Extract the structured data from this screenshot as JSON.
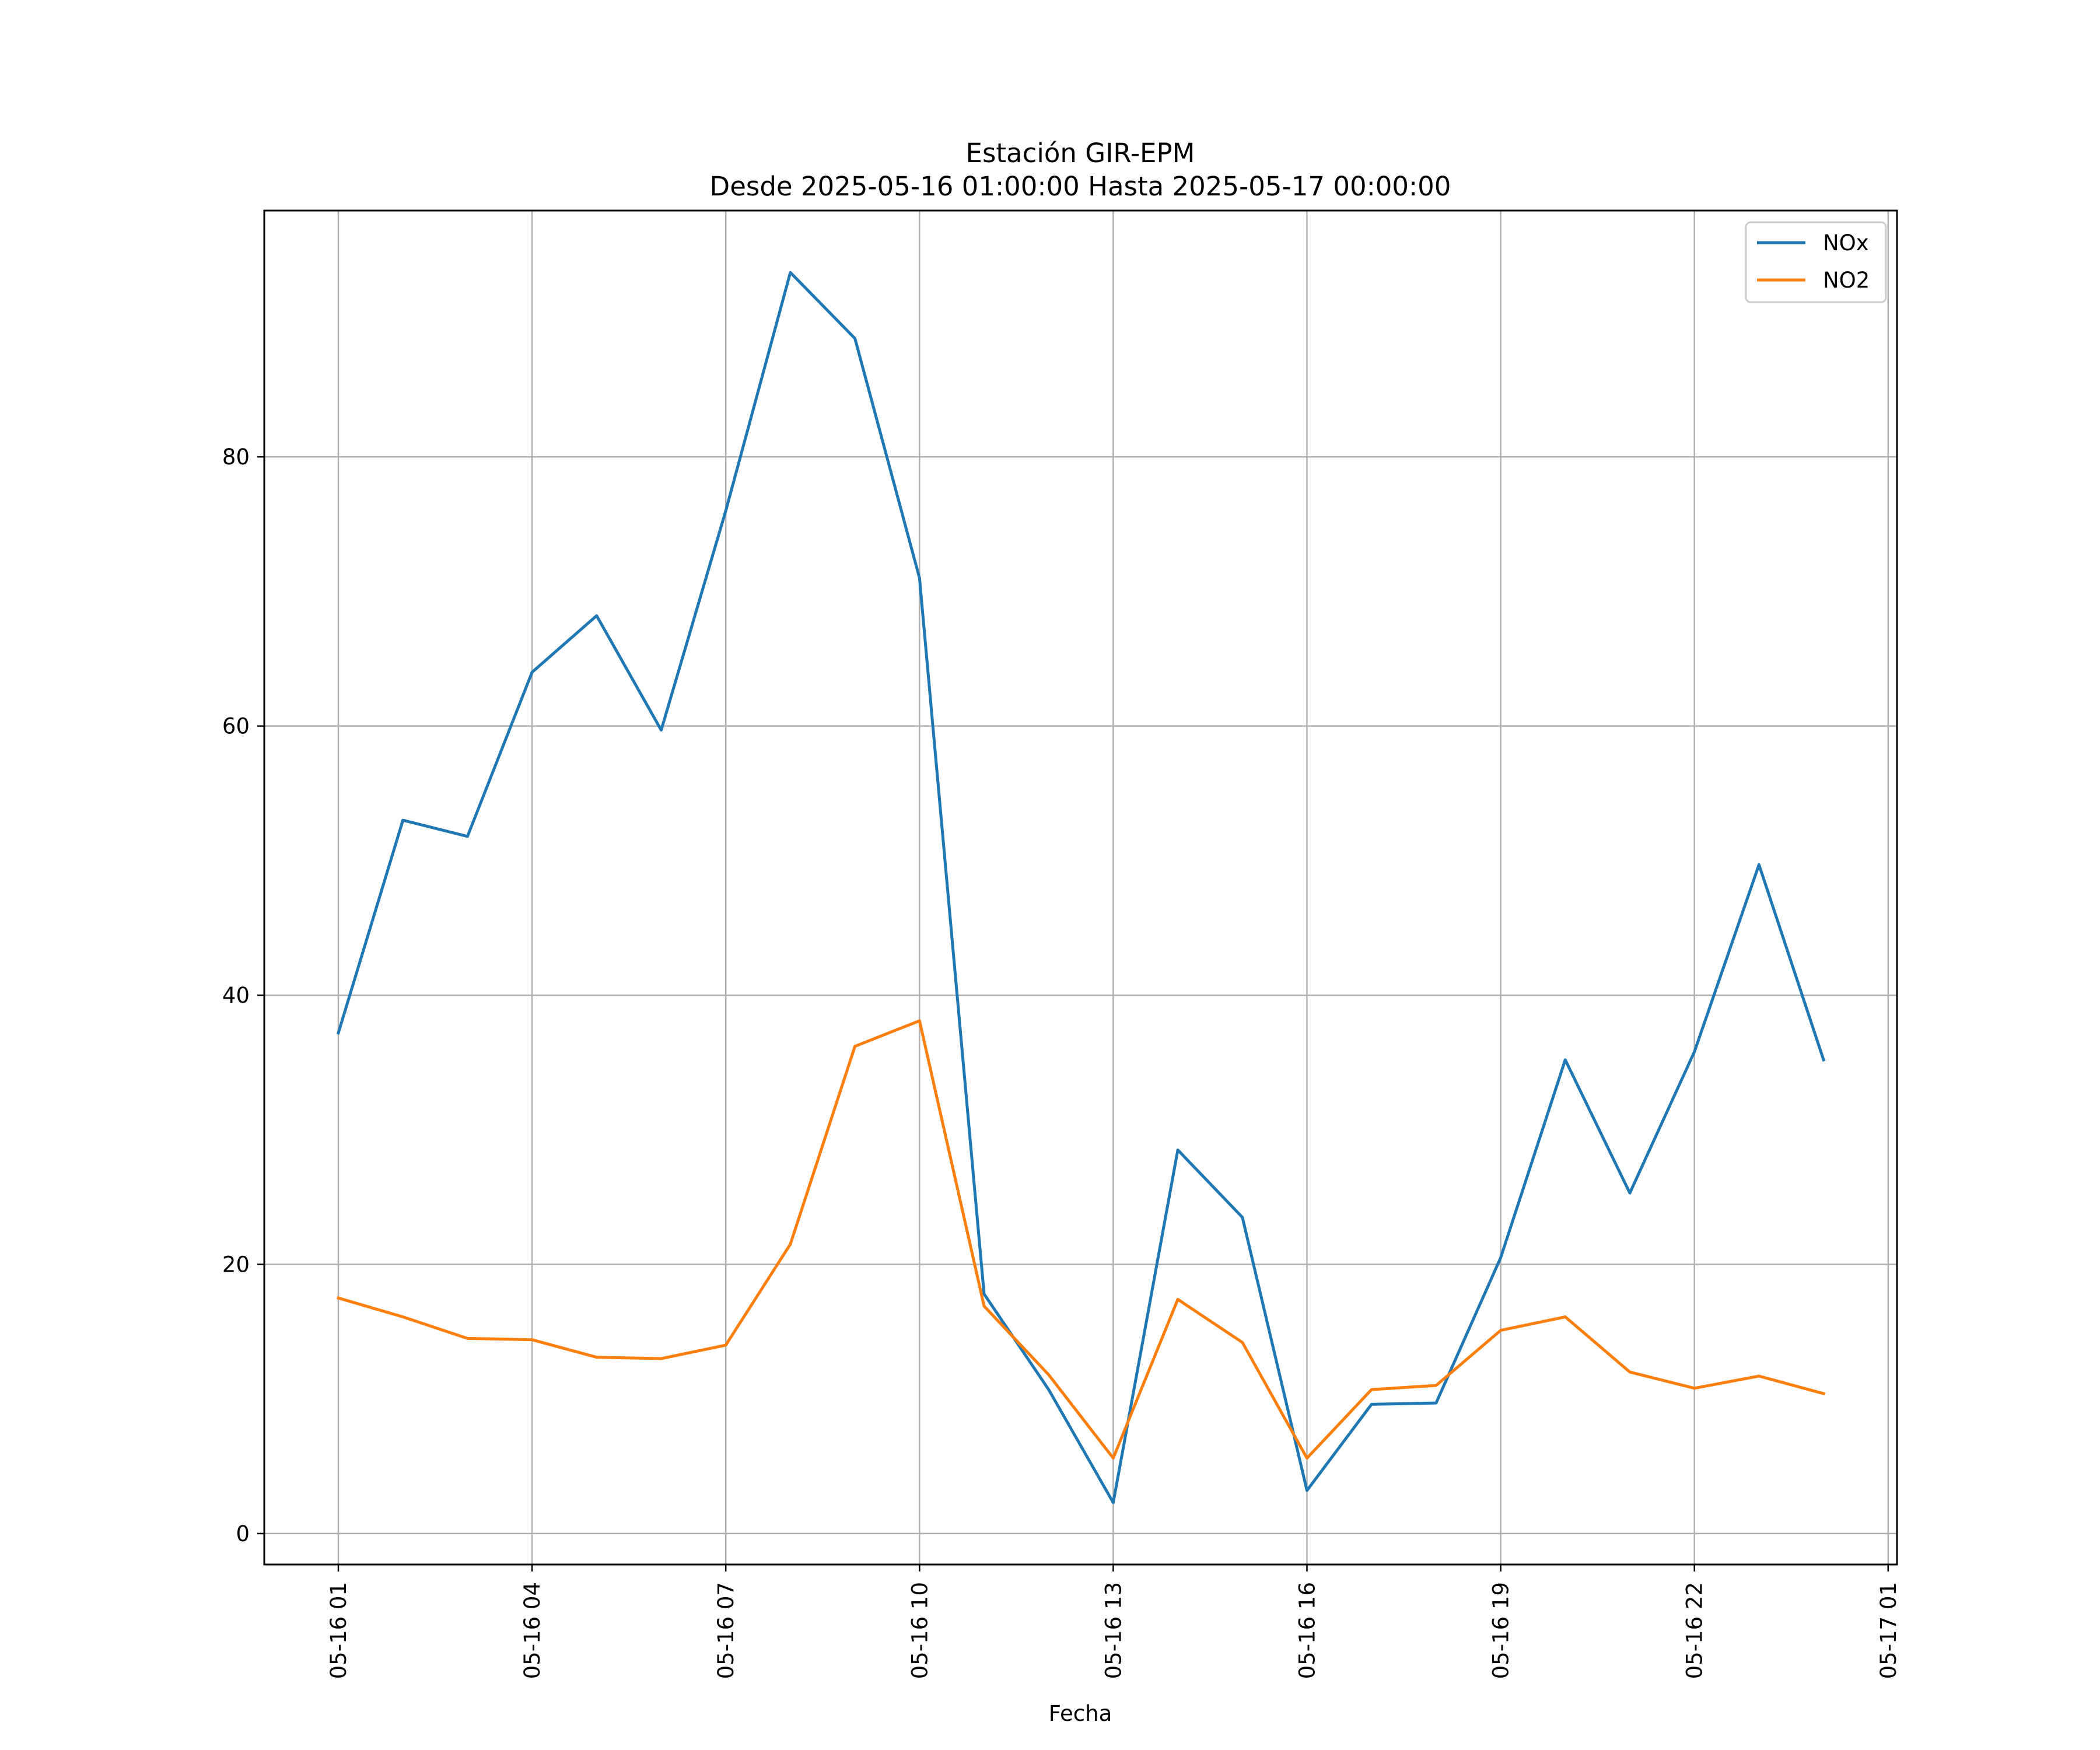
{
  "chart_data": {
    "type": "line",
    "title": "Estación GIR-EPM",
    "subtitle": "Desde 2025-05-16 01:00:00 Hasta 2025-05-17 00:00:00",
    "xlabel": "Fecha",
    "ylabel": "",
    "x": [
      "2025-05-16 01:00",
      "2025-05-16 02:00",
      "2025-05-16 03:00",
      "2025-05-16 04:00",
      "2025-05-16 05:00",
      "2025-05-16 06:00",
      "2025-05-16 07:00",
      "2025-05-16 08:00",
      "2025-05-16 09:00",
      "2025-05-16 10:00",
      "2025-05-16 11:00",
      "2025-05-16 12:00",
      "2025-05-16 13:00",
      "2025-05-16 14:00",
      "2025-05-16 15:00",
      "2025-05-16 16:00",
      "2025-05-16 17:00",
      "2025-05-16 18:00",
      "2025-05-16 19:00",
      "2025-05-16 20:00",
      "2025-05-16 21:00",
      "2025-05-16 22:00",
      "2025-05-16 23:00",
      "2025-05-17 00:00"
    ],
    "series": [
      {
        "name": "NOx",
        "color": "#1f77b4",
        "values": [
          37.2,
          53.0,
          51.8,
          64.0,
          68.2,
          59.7,
          76.0,
          93.7,
          88.8,
          71.0,
          17.8,
          10.7,
          2.3,
          28.5,
          23.5,
          3.2,
          9.6,
          9.7,
          20.5,
          35.2,
          25.3,
          35.8,
          49.7,
          35.2
        ]
      },
      {
        "name": "NO2",
        "color": "#ff7f0e",
        "values": [
          17.5,
          16.1,
          14.5,
          14.4,
          13.1,
          13.0,
          14.0,
          21.5,
          36.2,
          38.1,
          16.9,
          11.8,
          5.6,
          17.4,
          14.2,
          5.6,
          10.7,
          11.0,
          15.1,
          16.1,
          12.0,
          10.8,
          11.7,
          10.4
        ]
      }
    ],
    "ylim": [
      -2.3,
      98.3
    ],
    "yticks": [
      0,
      20,
      40,
      60,
      80
    ],
    "xticks": [
      "05-16 01",
      "05-16 04",
      "05-16 07",
      "05-16 10",
      "05-16 13",
      "05-16 16",
      "05-16 19",
      "05-16 22",
      "05-17 01"
    ],
    "grid": true,
    "legend": "top-right"
  }
}
